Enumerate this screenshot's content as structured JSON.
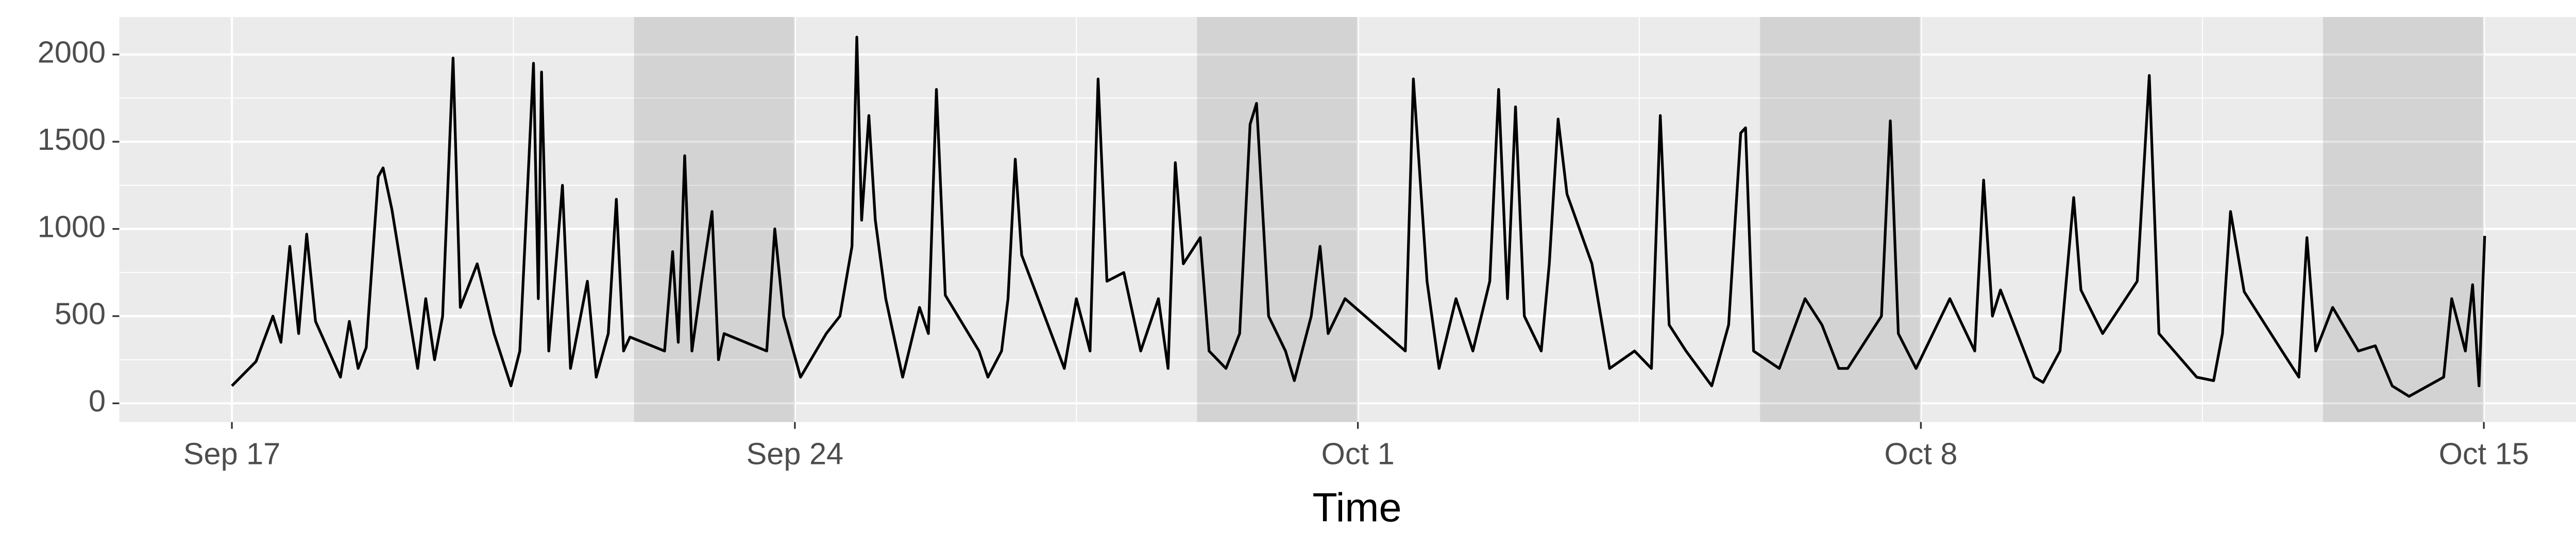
{
  "chart_data": {
    "type": "line",
    "x_title": "Time",
    "color": "#000000",
    "panel_color": "#ebebeb",
    "shade_color": "#000000",
    "xlim": [
      -1.4,
      30.31
    ],
    "ylim": [
      -107,
      2215
    ],
    "xticks": [
      {
        "value": 0,
        "label": "Sep 17"
      },
      {
        "value": 7,
        "label": "Sep 24"
      },
      {
        "value": 14,
        "label": "Oct 1"
      },
      {
        "value": 21,
        "label": "Oct 8"
      },
      {
        "value": 28,
        "label": "Oct 15"
      }
    ],
    "x_minor_ticks": [
      3.5,
      10.5,
      17.5,
      24.5
    ],
    "yticks": [
      0,
      500,
      1000,
      1500,
      2000
    ],
    "y_minor_ticks": [
      250,
      750,
      1250,
      1750
    ],
    "grid": true,
    "shaded_ranges": [
      [
        5,
        7
      ],
      [
        12,
        14
      ],
      [
        19,
        21
      ],
      [
        26,
        28
      ]
    ],
    "x": [
      0,
      0.3,
      0.51,
      0.61,
      0.72,
      0.83,
      0.93,
      1.04,
      1.35,
      1.46,
      1.57,
      1.67,
      1.82,
      1.88,
      1.99,
      2.31,
      2.41,
      2.52,
      2.62,
      2.75,
      2.84,
      3.05,
      3.26,
      3.47,
      3.58,
      3.75,
      3.81,
      3.85,
      3.94,
      4.11,
      4.21,
      4.42,
      4.53,
      4.68,
      4.78,
      4.87,
      4.95,
      5.38,
      5.48,
      5.55,
      5.63,
      5.72,
      5.84,
      5.97,
      6.05,
      6.12,
      6.65,
      6.75,
      6.86,
      7.07,
      7.39,
      7.56,
      7.71,
      7.77,
      7.83,
      7.92,
      8.0,
      8.13,
      8.34,
      8.55,
      8.66,
      8.76,
      8.87,
      9.29,
      9.4,
      9.57,
      9.65,
      9.74,
      9.82,
      10.35,
      10.5,
      10.67,
      10.77,
      10.88,
      11.09,
      11.3,
      11.52,
      11.64,
      11.73,
      11.83,
      12.04,
      12.15,
      12.36,
      12.53,
      12.66,
      12.74,
      12.89,
      13.1,
      13.21,
      13.42,
      13.53,
      13.63,
      13.84,
      14.59,
      14.69,
      14.86,
      15.01,
      15.22,
      15.43,
      15.64,
      15.75,
      15.86,
      15.96,
      16.07,
      16.28,
      16.38,
      16.49,
      16.6,
      16.91,
      17.13,
      17.44,
      17.65,
      17.76,
      17.87,
      18.08,
      18.4,
      18.61,
      18.76,
      18.82,
      18.92,
      19.24,
      19.56,
      19.77,
      19.98,
      20.09,
      20.51,
      20.62,
      20.72,
      20.94,
      21.15,
      21.36,
      21.67,
      21.78,
      21.89,
      21.99,
      22.41,
      22.52,
      22.73,
      22.9,
      22.99,
      23.26,
      23.69,
      23.84,
      23.96,
      24.43,
      24.64,
      24.75,
      24.85,
      25.02,
      25.49,
      25.7,
      25.8,
      25.91,
      26.12,
      26.44,
      26.65,
      26.86,
      27.07,
      27.5,
      27.6,
      27.77,
      27.86,
      27.94,
      28.01
    ],
    "values": [
      100,
      240,
      500,
      350,
      900,
      400,
      970,
      470,
      150,
      470,
      200,
      320,
      1300,
      1350,
      1110,
      200,
      600,
      250,
      500,
      1980,
      550,
      800,
      400,
      100,
      300,
      1950,
      600,
      1900,
      300,
      1250,
      200,
      700,
      150,
      400,
      1170,
      300,
      380,
      300,
      870,
      350,
      1420,
      300,
      700,
      1100,
      250,
      400,
      300,
      1000,
      500,
      150,
      400,
      500,
      900,
      2100,
      1050,
      1650,
      1050,
      600,
      150,
      550,
      400,
      1800,
      620,
      300,
      150,
      300,
      600,
      1400,
      850,
      200,
      600,
      300,
      1860,
      700,
      750,
      300,
      600,
      200,
      1380,
      800,
      950,
      300,
      200,
      400,
      1600,
      1720,
      500,
      300,
      130,
      500,
      900,
      400,
      600,
      300,
      1860,
      700,
      200,
      600,
      300,
      700,
      1800,
      600,
      1700,
      500,
      300,
      800,
      1630,
      1200,
      800,
      200,
      300,
      200,
      1650,
      450,
      300,
      100,
      450,
      1550,
      1580,
      300,
      200,
      600,
      450,
      200,
      200,
      500,
      1620,
      400,
      200,
      400,
      600,
      300,
      1280,
      500,
      650,
      150,
      120,
      300,
      1180,
      650,
      400,
      700,
      1880,
      400,
      150,
      130,
      400,
      1100,
      640,
      300,
      150,
      950,
      300,
      550,
      300,
      330,
      100,
      40,
      150,
      600,
      300,
      680,
      100,
      960
    ]
  }
}
